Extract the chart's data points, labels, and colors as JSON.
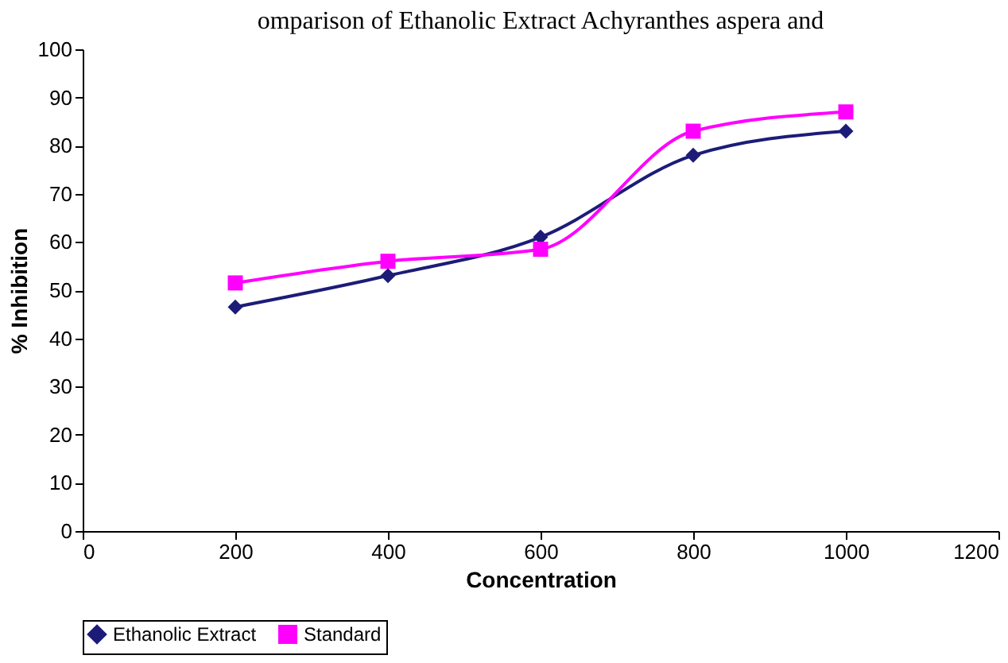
{
  "chart_data": {
    "type": "line",
    "title": "omparison of Ethanolic Extract Achyranthes aspera and",
    "xlabel": "Concentration",
    "ylabel": "% Inhibition",
    "x": [
      200,
      400,
      600,
      800,
      1000
    ],
    "series": [
      {
        "name": "Ethanolic Extract",
        "color": "#1c1c78",
        "marker": "diamond",
        "values": [
          46.5,
          53,
          61,
          78,
          83
        ]
      },
      {
        "name": "Standard",
        "color": "#ff00ff",
        "marker": "square",
        "values": [
          51.5,
          56,
          58.5,
          83,
          87
        ]
      }
    ],
    "xlim": [
      0,
      1200
    ],
    "xticks": [
      0,
      200,
      400,
      600,
      800,
      1000,
      1200
    ],
    "ylim": [
      0,
      100
    ],
    "yticks": [
      0,
      10,
      20,
      30,
      40,
      50,
      60,
      70,
      80,
      90,
      100
    ],
    "grid": false,
    "legend": "bottom",
    "line_style": "solid"
  }
}
